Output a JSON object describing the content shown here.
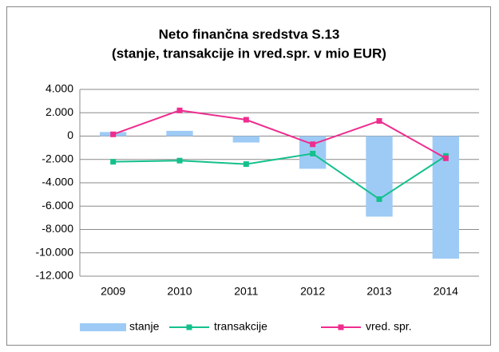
{
  "chart_data": {
    "type": "bar_line",
    "title": [
      "Neto finančna sredstva S.13",
      "(stanje, transakcije in vred.spr. v mio EUR)"
    ],
    "categories": [
      "2009",
      "2010",
      "2011",
      "2012",
      "2013",
      "2014"
    ],
    "series": [
      {
        "name": "stanje",
        "type": "bar",
        "color": "#9ecbf5",
        "values": [
          350,
          450,
          -550,
          -2800,
          -6900,
          -10500
        ]
      },
      {
        "name": "transakcije",
        "type": "line",
        "color": "#14c08c",
        "values": [
          -2200,
          -2100,
          -2400,
          -1500,
          -5400,
          -1700
        ]
      },
      {
        "name": "vred. spr.",
        "type": "line",
        "color": "#ee2d8f",
        "values": [
          150,
          2200,
          1400,
          -700,
          1300,
          -1900
        ]
      }
    ],
    "ylim": [
      -12000,
      4000
    ],
    "yticks": [
      {
        "value": 4000,
        "label": "4.000"
      },
      {
        "value": 2000,
        "label": "2.000"
      },
      0,
      {
        "value": -2000,
        "label": "-2.000"
      },
      {
        "value": -4000,
        "label": "-4.000"
      },
      {
        "value": -6000,
        "label": "-6.000"
      },
      {
        "value": -8000,
        "label": "-8.000"
      },
      {
        "value": -10000,
        "label": "-10.000"
      },
      {
        "value": -12000,
        "label": "-12.000"
      }
    ],
    "grid": true,
    "legend": "bottom"
  }
}
